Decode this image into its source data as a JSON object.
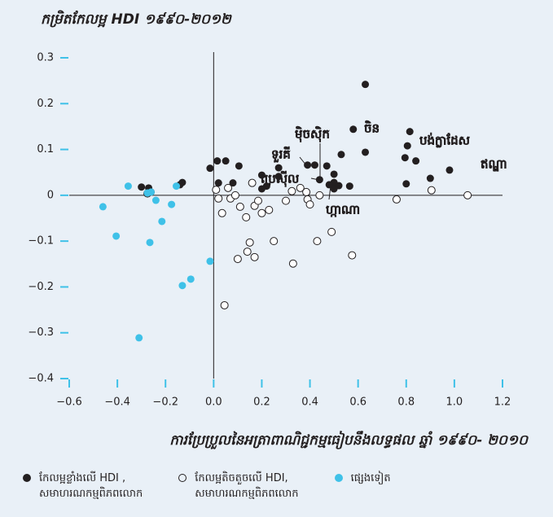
{
  "chart_data": {
    "type": "scatter",
    "title": "កម្រិតកែលម្អ HDI ១៩៩០-២០១២",
    "x_label": "ការប្រែប្រួលនៃអត្រាពាណិជ្ជកម្មធៀបនឹងលទ្ធផល ឆ្នាំ ១៩៩០- ២០១០",
    "xlim": [
      -0.6,
      1.2
    ],
    "ylim": [
      -0.4,
      0.3
    ],
    "xticks": [
      {
        "value": -0.6,
        "label": "−0.6"
      },
      {
        "value": -0.4,
        "label": "−0.4"
      },
      {
        "value": -0.2,
        "label": "−0.2"
      },
      {
        "value": 0,
        "label": "0.0"
      },
      0.2,
      0.4,
      0.6,
      0.8,
      {
        "value": 1,
        "label": "1.0"
      },
      1.2
    ],
    "yticks": [
      0.3,
      0.2,
      0.1,
      0,
      {
        "value": -0.1,
        "label": "−0.1"
      },
      {
        "value": -0.2,
        "label": "−0.2"
      },
      {
        "value": -0.3,
        "label": "−0.3"
      },
      {
        "value": -0.4,
        "label": "−0.4"
      }
    ],
    "annotations": [
      "ចិន",
      "បង់ក្លាដែស",
      "ឥណ្ឌា",
      "ម៉ិចស៊ិក",
      "ទួរគី",
      "ប្រេស៊ីល",
      "ហ្កាណា"
    ],
    "series": [
      {
        "name": "កែលម្អខ្លាំងលើ HDI ,\nសមាហរណកម្មពិភពលោក",
        "color": "#231f20",
        "filled": true,
        "x": [
          0.63,
          0.58,
          0.63,
          0.815,
          0.805,
          0.795,
          0.84,
          0.98,
          0.9,
          0.8,
          0.53,
          0.47,
          0.5,
          0.39,
          0.42,
          0.27,
          0.27,
          0.44,
          0.5,
          0.52,
          0.5,
          0.565,
          0.48,
          0.2,
          0.22,
          0.2,
          0.105,
          0.05,
          0.015,
          -0.015,
          0.02,
          0.08,
          -0.13,
          -0.14,
          -0.3,
          -0.27,
          -0.26
        ],
        "values": [
          0.242,
          0.144,
          0.094,
          0.139,
          0.108,
          0.082,
          0.075,
          0.055,
          0.037,
          0.025,
          0.089,
          0.064,
          0.046,
          0.066,
          0.066,
          0.06,
          0.041,
          0.034,
          0.028,
          0.021,
          0.014,
          0.02,
          0.023,
          0.044,
          0.02,
          0.014,
          0.064,
          0.075,
          0.075,
          0.059,
          0.027,
          0.027,
          0.028,
          0.023,
          0.018,
          0.016,
          0.007
        ]
      },
      {
        "name": "កែលម្អតិចតួចលើ HDI,\nសមាហរណកម្មពិភពលោក",
        "color": "#231f20",
        "filled": false,
        "x": [
          1.055,
          0.905,
          0.76,
          0.49,
          0.43,
          0.575,
          0.33,
          0.25,
          0.15,
          0.14,
          0.17,
          0.1,
          0.045,
          0.135,
          0.035,
          0.02,
          0.07,
          0.09,
          0.11,
          0.17,
          0.2,
          0.185,
          0.23,
          0.3,
          0.325,
          0.36,
          0.385,
          0.39,
          0.4,
          0.44,
          0.16,
          0.01,
          0.06,
          -0.275
        ],
        "values": [
          0.0,
          0.011,
          -0.009,
          -0.08,
          -0.1,
          -0.131,
          -0.149,
          -0.1,
          -0.103,
          -0.123,
          -0.135,
          -0.139,
          -0.24,
          -0.048,
          -0.039,
          -0.007,
          -0.007,
          0.0,
          -0.025,
          -0.023,
          -0.039,
          -0.012,
          -0.032,
          -0.012,
          0.009,
          0.016,
          0.007,
          -0.009,
          -0.02,
          0.0,
          0.027,
          0.012,
          0.016,
          0.004
        ]
      },
      {
        "name": "ផ្សេងទៀត",
        "color": "#3fc1e8",
        "filled": true,
        "x": [
          -0.46,
          -0.405,
          -0.355,
          -0.265,
          -0.275,
          -0.26,
          -0.24,
          -0.215,
          -0.175,
          -0.155,
          -0.31,
          -0.13,
          -0.095,
          -0.015
        ],
        "values": [
          -0.025,
          -0.089,
          0.02,
          -0.103,
          0.005,
          0.007,
          -0.011,
          -0.057,
          -0.02,
          0.02,
          -0.311,
          -0.197,
          -0.183,
          -0.144
        ]
      }
    ]
  }
}
